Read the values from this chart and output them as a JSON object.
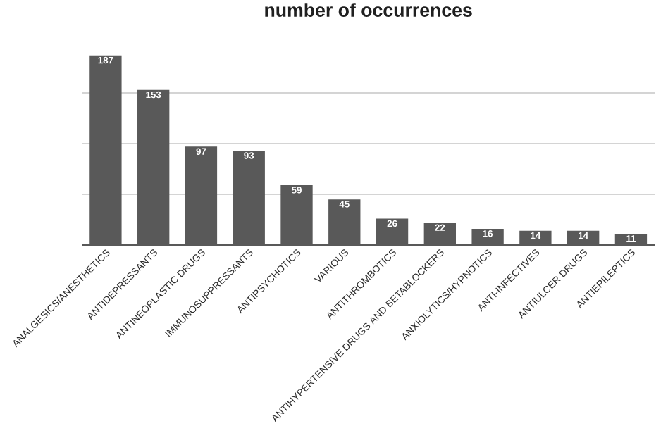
{
  "chart_data": {
    "type": "bar",
    "title": "number of occurrences",
    "categories": [
      "ANALGESICS/ANESTHETICS",
      "ANTIDEPRESSANTS",
      "ANTINEOPLASTIC DRUGS",
      "IMMUNOSUPPRESSANTS",
      "ANTIPSYCHOTICS",
      "VARIOUS",
      "ANTITHROMBOTICS",
      "ANTIHYPERTENSIVE DRUGS AND BETABLOCKERS",
      "ANXIOLYTICS/HYPNOTICS",
      "ANTI-INFECTIVES",
      "ANTIULCER DRUGS",
      "ANTIEPILEPTICS"
    ],
    "values": [
      187,
      153,
      97,
      93,
      59,
      45,
      26,
      22,
      16,
      14,
      14,
      11
    ],
    "color": "#595959",
    "grid": "y",
    "data_labels": true
  }
}
